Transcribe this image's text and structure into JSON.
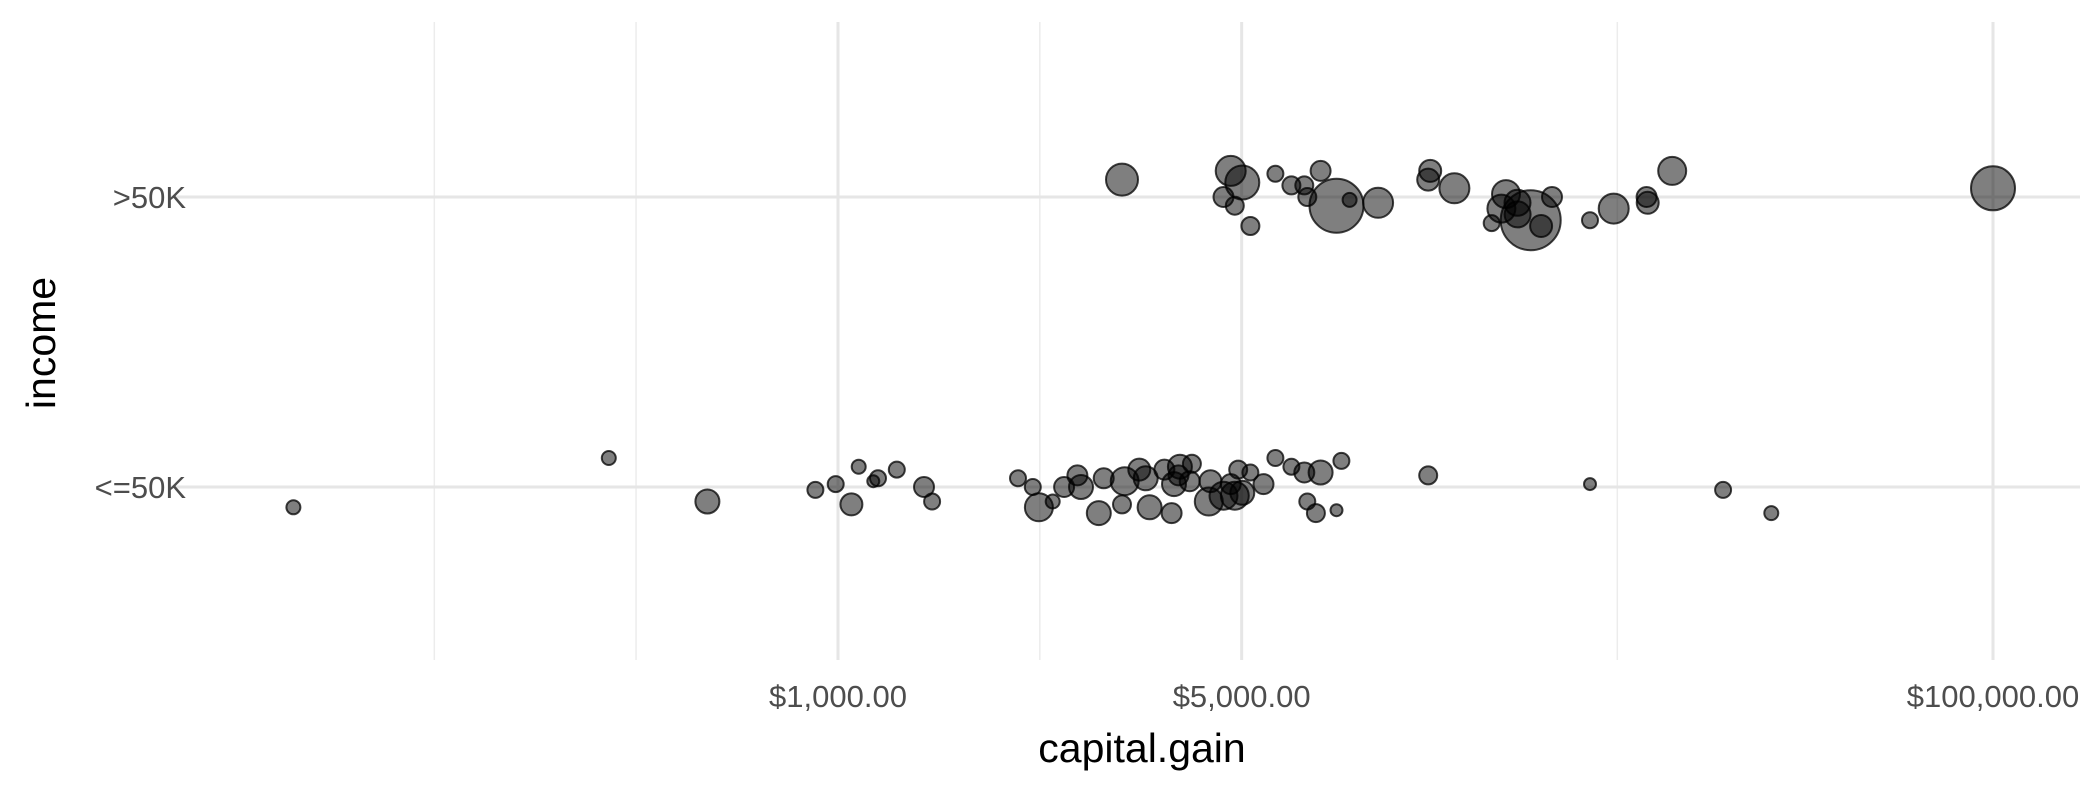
{
  "chart_data": {
    "type": "scatter",
    "xlabel": "capital.gain",
    "ylabel": "income",
    "x_scale": "log10",
    "xlim": [
      114,
      125000
    ],
    "x_ticks": [
      {
        "value": 1000,
        "label": "$1,000.00"
      },
      {
        "value": 5000,
        "label": "$5,000.00"
      },
      {
        "value": 100000,
        "label": "$100,000.00"
      }
    ],
    "x_gridlines_major": [
      1000,
      5000,
      100000
    ],
    "x_gridlines_minor": [
      200,
      447,
      2236,
      22361
    ],
    "categories": [
      "<=50K",
      ">50K"
    ],
    "grid": true,
    "legend": "none",
    "point_color": "#000000",
    "point_alpha": 0.5,
    "series": [
      {
        "category": "<=50K",
        "points": [
          {
            "x": 114,
            "jitter": -0.07,
            "size": 7
          },
          {
            "x": 401,
            "jitter": 0.1,
            "size": 7
          },
          {
            "x": 594,
            "jitter": -0.05,
            "size": 12
          },
          {
            "x": 914,
            "jitter": -0.01,
            "size": 8
          },
          {
            "x": 991,
            "jitter": 0.01,
            "size": 8
          },
          {
            "x": 1055,
            "jitter": -0.06,
            "size": 11
          },
          {
            "x": 1086,
            "jitter": 0.07,
            "size": 7
          },
          {
            "x": 1151,
            "jitter": 0.02,
            "size": 6
          },
          {
            "x": 1173,
            "jitter": 0.03,
            "size": 8
          },
          {
            "x": 1264,
            "jitter": 0.06,
            "size": 8
          },
          {
            "x": 1409,
            "jitter": 0.0,
            "size": 10
          },
          {
            "x": 1455,
            "jitter": -0.05,
            "size": 8
          },
          {
            "x": 2050,
            "jitter": 0.03,
            "size": 8
          },
          {
            "x": 2174,
            "jitter": 0.0,
            "size": 8
          },
          {
            "x": 2228,
            "jitter": -0.07,
            "size": 14
          },
          {
            "x": 2354,
            "jitter": -0.05,
            "size": 7
          },
          {
            "x": 2463,
            "jitter": 0.0,
            "size": 10
          },
          {
            "x": 2597,
            "jitter": 0.04,
            "size": 10
          },
          {
            "x": 2635,
            "jitter": 0.0,
            "size": 12
          },
          {
            "x": 2829,
            "jitter": -0.09,
            "size": 12
          },
          {
            "x": 2885,
            "jitter": 0.03,
            "size": 10
          },
          {
            "x": 3103,
            "jitter": -0.06,
            "size": 9
          },
          {
            "x": 3137,
            "jitter": 0.02,
            "size": 14
          },
          {
            "x": 3325,
            "jitter": 0.06,
            "size": 11
          },
          {
            "x": 3411,
            "jitter": 0.03,
            "size": 12
          },
          {
            "x": 3464,
            "jitter": -0.07,
            "size": 12
          },
          {
            "x": 3674,
            "jitter": 0.06,
            "size": 10
          },
          {
            "x": 3781,
            "jitter": -0.09,
            "size": 10
          },
          {
            "x": 3818,
            "jitter": 0.01,
            "size": 12
          },
          {
            "x": 3887,
            "jitter": 0.04,
            "size": 10
          },
          {
            "x": 3908,
            "jitter": 0.07,
            "size": 12
          },
          {
            "x": 4064,
            "jitter": 0.02,
            "size": 10
          },
          {
            "x": 4101,
            "jitter": 0.08,
            "size": 9
          },
          {
            "x": 4386,
            "jitter": -0.05,
            "size": 14
          },
          {
            "x": 4416,
            "jitter": 0.02,
            "size": 11
          },
          {
            "x": 4650,
            "jitter": -0.03,
            "size": 14
          },
          {
            "x": 4787,
            "jitter": 0.01,
            "size": 10
          },
          {
            "x": 4865,
            "jitter": -0.03,
            "size": 14
          },
          {
            "x": 4931,
            "jitter": 0.06,
            "size": 9
          },
          {
            "x": 5013,
            "jitter": -0.02,
            "size": 12
          },
          {
            "x": 5178,
            "jitter": 0.05,
            "size": 8
          },
          {
            "x": 5455,
            "jitter": 0.01,
            "size": 10
          },
          {
            "x": 5721,
            "jitter": 0.1,
            "size": 8
          },
          {
            "x": 6097,
            "jitter": 0.07,
            "size": 8
          },
          {
            "x": 6418,
            "jitter": 0.05,
            "size": 10
          },
          {
            "x": 6497,
            "jitter": -0.05,
            "size": 8
          },
          {
            "x": 6723,
            "jitter": -0.09,
            "size": 9
          },
          {
            "x": 6849,
            "jitter": 0.05,
            "size": 12
          },
          {
            "x": 7298,
            "jitter": -0.08,
            "size": 6
          },
          {
            "x": 7443,
            "jitter": 0.09,
            "size": 8
          },
          {
            "x": 10520,
            "jitter": 0.04,
            "size": 9
          },
          {
            "x": 20051,
            "jitter": 0.01,
            "size": 6
          },
          {
            "x": 34095,
            "jitter": -0.01,
            "size": 8
          },
          {
            "x": 41310,
            "jitter": -0.09,
            "size": 7
          }
        ]
      },
      {
        "category": ">50K",
        "points": [
          {
            "x": 3103,
            "jitter": 0.06,
            "size": 16
          },
          {
            "x": 4787,
            "jitter": 0.09,
            "size": 15
          },
          {
            "x": 5013,
            "jitter": 0.05,
            "size": 17
          },
          {
            "x": 4650,
            "jitter": 0.0,
            "size": 10
          },
          {
            "x": 4865,
            "jitter": -0.03,
            "size": 9
          },
          {
            "x": 5178,
            "jitter": -0.1,
            "size": 9
          },
          {
            "x": 6418,
            "jitter": 0.04,
            "size": 9
          },
          {
            "x": 5721,
            "jitter": 0.08,
            "size": 8
          },
          {
            "x": 6097,
            "jitter": 0.04,
            "size": 9
          },
          {
            "x": 6849,
            "jitter": 0.09,
            "size": 10
          },
          {
            "x": 6497,
            "jitter": 0.0,
            "size": 9
          },
          {
            "x": 7298,
            "jitter": -0.03,
            "size": 27
          },
          {
            "x": 7688,
            "jitter": -0.01,
            "size": 7
          },
          {
            "x": 8614,
            "jitter": -0.02,
            "size": 15
          },
          {
            "x": 10520,
            "jitter": 0.06,
            "size": 11
          },
          {
            "x": 10605,
            "jitter": 0.09,
            "size": 11
          },
          {
            "x": 11678,
            "jitter": 0.03,
            "size": 15
          },
          {
            "x": 13550,
            "jitter": -0.09,
            "size": 8
          },
          {
            "x": 14084,
            "jitter": -0.04,
            "size": 14
          },
          {
            "x": 14344,
            "jitter": 0.01,
            "size": 14
          },
          {
            "x": 15024,
            "jitter": -0.06,
            "size": 13
          },
          {
            "x": 15831,
            "jitter": -0.08,
            "size": 30
          },
          {
            "x": 15020,
            "jitter": -0.02,
            "size": 13
          },
          {
            "x": 16500,
            "jitter": -0.1,
            "size": 11
          },
          {
            "x": 17230,
            "jitter": 0.0,
            "size": 10
          },
          {
            "x": 20051,
            "jitter": -0.08,
            "size": 8
          },
          {
            "x": 22040,
            "jitter": -0.04,
            "size": 15
          },
          {
            "x": 25236,
            "jitter": -0.02,
            "size": 11
          },
          {
            "x": 25124,
            "jitter": 0.0,
            "size": 10
          },
          {
            "x": 27828,
            "jitter": 0.09,
            "size": 14
          },
          {
            "x": 99999,
            "jitter": 0.03,
            "size": 22
          }
        ]
      }
    ]
  }
}
